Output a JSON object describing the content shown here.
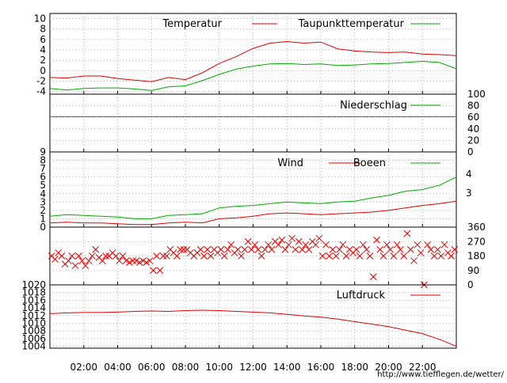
{
  "colors": {
    "red": "#dd0000",
    "green": "#00aa00",
    "grid": "#a0a0a0",
    "axis": "#000000",
    "background": "#ffffff"
  },
  "time_labels": [
    "02:00",
    "04:00",
    "06:00",
    "08:00",
    "10:00",
    "12:00",
    "14:00",
    "16:00",
    "18:00",
    "20:00",
    "22:00"
  ],
  "footer": {
    "url": "http://www.tiefflegen.de/wetter/"
  },
  "chart_data": [
    {
      "id": "temperature",
      "type": "line",
      "x": [
        0,
        1,
        2,
        3,
        4,
        5,
        6,
        7,
        8,
        9,
        10,
        11,
        12,
        13,
        14,
        15,
        16,
        17,
        18,
        19,
        20,
        21,
        22,
        23,
        24
      ],
      "ylim": [
        -4.5,
        11
      ],
      "yticks": [
        -4,
        -2,
        0,
        2,
        4,
        6,
        8,
        10
      ],
      "ytick_labels": [
        "-4",
        "-2",
        "0",
        "2",
        "4",
        "6",
        "8",
        "10"
      ],
      "series": [
        {
          "name": "Temperatur",
          "color_key": "red",
          "values": [
            -1.3,
            -1.4,
            -1.0,
            -1.0,
            -1.5,
            -1.8,
            -2.1,
            -1.3,
            -1.7,
            -0.4,
            1.4,
            2.7,
            4.3,
            5.3,
            5.6,
            5.3,
            5.5,
            4.2,
            3.8,
            3.6,
            3.5,
            3.6,
            3.2,
            3.1,
            2.9
          ]
        },
        {
          "name": "Taupunkttemperatur",
          "color_key": "green",
          "values": [
            -3.4,
            -3.7,
            -3.4,
            -3.3,
            -3.3,
            -3.5,
            -3.8,
            -3.1,
            -2.9,
            -1.9,
            -0.7,
            0.3,
            0.9,
            1.3,
            1.4,
            1.2,
            1.3,
            1.0,
            1.1,
            1.3,
            1.4,
            1.6,
            1.8,
            1.6,
            0.4
          ]
        }
      ]
    },
    {
      "id": "precipitation",
      "type": "line",
      "x": [
        0,
        24
      ],
      "ylim": [
        0,
        100
      ],
      "yticks": [
        0,
        20,
        40,
        60,
        80,
        100
      ],
      "ytick_labels": [
        "0",
        "20",
        "40",
        "60",
        "80",
        "100"
      ],
      "series": [
        {
          "name": "Niederschlag",
          "color_key": "green",
          "values": [
            61,
            61
          ]
        }
      ]
    },
    {
      "id": "wind",
      "type": "line",
      "x": [
        0,
        1,
        2,
        3,
        4,
        5,
        6,
        7,
        8,
        9,
        10,
        11,
        12,
        13,
        14,
        15,
        16,
        17,
        18,
        19,
        20,
        21,
        22,
        23,
        24
      ],
      "ylim": [
        0,
        9
      ],
      "yticks": [
        0,
        1,
        2,
        3,
        4,
        5,
        6,
        7,
        8,
        9
      ],
      "ytick_labels": [
        "0",
        "1",
        "2",
        "3",
        "4",
        "5",
        "6",
        "7",
        "8",
        "9"
      ],
      "right_labels": [
        "4",
        "3"
      ],
      "series": [
        {
          "name": "Wind",
          "color_key": "red",
          "values": [
            0.5,
            0.6,
            0.5,
            0.5,
            0.4,
            0.3,
            0.3,
            0.5,
            0.6,
            0.5,
            1.0,
            1.1,
            1.3,
            1.6,
            1.7,
            1.6,
            1.5,
            1.6,
            1.7,
            1.8,
            2.0,
            2.3,
            2.6,
            2.8,
            3.1
          ]
        },
        {
          "name": "Boeen",
          "color_key": "green",
          "values": [
            1.3,
            1.5,
            1.4,
            1.3,
            1.2,
            1.0,
            1.0,
            1.4,
            1.5,
            1.6,
            2.3,
            2.5,
            2.6,
            2.8,
            3.0,
            2.9,
            2.8,
            3.0,
            3.1,
            3.5,
            3.8,
            4.3,
            4.5,
            5.0,
            6.0
          ]
        }
      ]
    },
    {
      "id": "wind_direction",
      "type": "scatter",
      "ylim": [
        0,
        360
      ],
      "yticks": [
        0,
        90,
        180,
        270,
        360
      ],
      "ytick_labels": [
        "0",
        "90",
        "180",
        "270",
        "360"
      ],
      "color_key": "red",
      "points": [
        [
          0.1,
          180
        ],
        [
          0.3,
          160
        ],
        [
          0.5,
          200
        ],
        [
          0.7,
          180
        ],
        [
          0.9,
          130
        ],
        [
          1.1,
          150
        ],
        [
          1.3,
          180
        ],
        [
          1.5,
          120
        ],
        [
          1.7,
          180
        ],
        [
          1.9,
          150
        ],
        [
          2.1,
          120
        ],
        [
          2.3,
          150
        ],
        [
          2.5,
          180
        ],
        [
          2.7,
          220
        ],
        [
          2.9,
          170
        ],
        [
          3.1,
          150
        ],
        [
          3.3,
          180
        ],
        [
          3.5,
          180
        ],
        [
          3.7,
          200
        ],
        [
          3.9,
          180
        ],
        [
          4.1,
          150
        ],
        [
          4.3,
          180
        ],
        [
          4.5,
          150
        ],
        [
          4.7,
          140
        ],
        [
          4.9,
          150
        ],
        [
          5.1,
          150
        ],
        [
          5.3,
          140
        ],
        [
          5.5,
          150
        ],
        [
          5.7,
          140
        ],
        [
          5.9,
          150
        ],
        [
          6.1,
          90
        ],
        [
          6.3,
          180
        ],
        [
          6.5,
          90
        ],
        [
          6.7,
          180
        ],
        [
          6.9,
          180
        ],
        [
          7.1,
          220
        ],
        [
          7.3,
          200
        ],
        [
          7.5,
          180
        ],
        [
          7.7,
          220
        ],
        [
          7.9,
          220
        ],
        [
          8.1,
          220
        ],
        [
          8.3,
          200
        ],
        [
          8.5,
          180
        ],
        [
          8.7,
          200
        ],
        [
          8.9,
          220
        ],
        [
          9.1,
          180
        ],
        [
          9.3,
          220
        ],
        [
          9.5,
          180
        ],
        [
          9.7,
          220
        ],
        [
          9.9,
          200
        ],
        [
          10.1,
          220
        ],
        [
          10.3,
          180
        ],
        [
          10.5,
          220
        ],
        [
          10.7,
          250
        ],
        [
          10.9,
          200
        ],
        [
          11.1,
          220
        ],
        [
          11.3,
          180
        ],
        [
          11.5,
          220
        ],
        [
          11.7,
          270
        ],
        [
          11.9,
          220
        ],
        [
          12.1,
          250
        ],
        [
          12.3,
          220
        ],
        [
          12.5,
          180
        ],
        [
          12.7,
          220
        ],
        [
          12.9,
          250
        ],
        [
          13.1,
          220
        ],
        [
          13.3,
          270
        ],
        [
          13.5,
          250
        ],
        [
          13.7,
          280
        ],
        [
          13.9,
          220
        ],
        [
          14.1,
          250
        ],
        [
          14.3,
          290
        ],
        [
          14.5,
          220
        ],
        [
          14.7,
          270
        ],
        [
          14.9,
          220
        ],
        [
          15.1,
          250
        ],
        [
          15.3,
          220
        ],
        [
          15.5,
          270
        ],
        [
          15.7,
          250
        ],
        [
          15.9,
          290
        ],
        [
          16.1,
          180
        ],
        [
          16.3,
          250
        ],
        [
          16.5,
          180
        ],
        [
          16.7,
          220
        ],
        [
          16.9,
          180
        ],
        [
          17.1,
          220
        ],
        [
          17.3,
          250
        ],
        [
          17.5,
          180
        ],
        [
          17.7,
          220
        ],
        [
          17.9,
          200
        ],
        [
          18.1,
          220
        ],
        [
          18.3,
          180
        ],
        [
          18.5,
          250
        ],
        [
          18.7,
          220
        ],
        [
          18.9,
          180
        ],
        [
          19.1,
          50
        ],
        [
          19.3,
          280
        ],
        [
          19.5,
          220
        ],
        [
          19.7,
          180
        ],
        [
          19.9,
          250
        ],
        [
          20.1,
          220
        ],
        [
          20.3,
          180
        ],
        [
          20.5,
          250
        ],
        [
          20.7,
          220
        ],
        [
          20.9,
          180
        ],
        [
          21.1,
          320
        ],
        [
          21.3,
          220
        ],
        [
          21.5,
          150
        ],
        [
          21.7,
          250
        ],
        [
          21.9,
          200
        ],
        [
          22.1,
          0
        ],
        [
          22.3,
          250
        ],
        [
          22.5,
          220
        ],
        [
          22.7,
          180
        ],
        [
          22.9,
          220
        ],
        [
          23.1,
          180
        ],
        [
          23.3,
          250
        ],
        [
          23.5,
          200
        ],
        [
          23.7,
          180
        ],
        [
          23.9,
          220
        ]
      ]
    },
    {
      "id": "pressure",
      "type": "line",
      "x": [
        0,
        1,
        2,
        3,
        4,
        5,
        6,
        7,
        8,
        9,
        10,
        11,
        12,
        13,
        14,
        15,
        16,
        17,
        18,
        19,
        20,
        21,
        22,
        23,
        24
      ],
      "ylim": [
        1003.5,
        1020
      ],
      "yticks": [
        1004,
        1006,
        1008,
        1010,
        1012,
        1014,
        1016,
        1018,
        1020
      ],
      "ytick_labels": [
        "1004",
        "1006",
        "1008",
        "1010",
        "1012",
        "1014",
        "1016",
        "1018",
        "1020"
      ],
      "series": [
        {
          "name": "Luftdruck",
          "color_key": "red",
          "values": [
            1012.5,
            1012.7,
            1012.8,
            1012.8,
            1012.9,
            1013.1,
            1013.2,
            1013.1,
            1013.3,
            1013.4,
            1013.3,
            1013.1,
            1012.9,
            1012.7,
            1012.3,
            1011.9,
            1011.6,
            1011.1,
            1010.4,
            1009.8,
            1009.1,
            1008.2,
            1007.3,
            1005.8,
            1004.0
          ]
        }
      ]
    }
  ]
}
